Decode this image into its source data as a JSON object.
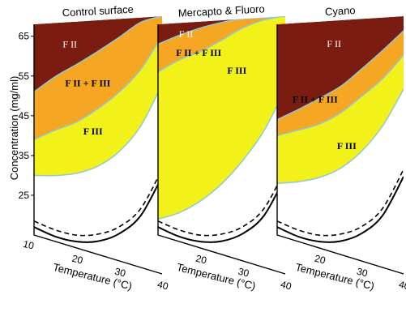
{
  "chart_data": {
    "type": "area",
    "ylabel": "Concentration (mg/ml)",
    "xlabel": "Temperature (°C)",
    "y_ticks": [
      "65",
      "55",
      "45",
      "35",
      "25"
    ],
    "x_ticks": [
      "10",
      "20",
      "30",
      "40"
    ],
    "y_ticks_values": [
      65,
      55,
      45,
      35,
      25
    ],
    "x_ticks_values": [
      10,
      20,
      30,
      40
    ],
    "xlim": [
      10,
      40
    ],
    "ylim": [
      15,
      68
    ],
    "colors": {
      "fII": "#7a1c10",
      "mixed": "#f5a623",
      "fIII": "#f2f21a",
      "boundary": "#8fc8d8",
      "solid_curve": "#000000",
      "dashed_curve": "#000000"
    },
    "panels": [
      {
        "title": "Control surface",
        "regions": [
          {
            "label": "F II",
            "between": "top and fII_boundary"
          },
          {
            "label": "F II + F III",
            "between": "fII_boundary and mixed_boundary"
          },
          {
            "label": "F III",
            "between": "mixed_boundary and fIII_boundary"
          }
        ],
        "fII_boundary": {
          "x": [
            10,
            15,
            20,
            25,
            30,
            35,
            40
          ],
          "y": [
            51,
            55,
            58,
            61,
            64,
            67,
            68
          ]
        },
        "mixed_boundary": {
          "x": [
            10,
            15,
            20,
            25,
            30,
            35,
            40
          ],
          "y": [
            39,
            42,
            44.5,
            48,
            52,
            57,
            64
          ]
        },
        "fIII_boundary": {
          "x": [
            10,
            15,
            20,
            25,
            30,
            35,
            40
          ],
          "y": [
            30,
            31,
            32.5,
            35,
            39,
            45,
            54
          ]
        },
        "solid_curve": {
          "x": [
            10,
            15,
            20,
            25,
            30,
            35,
            40
          ],
          "y": [
            17,
            16.2,
            16.5,
            18,
            21,
            26,
            35
          ]
        },
        "dashed_curve": {
          "x": [
            10,
            15,
            20,
            25,
            30,
            35,
            40
          ],
          "y": [
            18.5,
            17.8,
            18,
            19.6,
            22.5,
            27.5,
            36.5
          ]
        }
      },
      {
        "title": "Mercapto & Fluoro",
        "regions": [
          {
            "label": "F II",
            "between": "top and fII_boundary"
          },
          {
            "label": "F II + F III",
            "between": "fII_boundary and mixed_boundary"
          },
          {
            "label": "F III",
            "between": "mixed_boundary and fIII_boundary"
          }
        ],
        "fII_boundary": {
          "x": [
            10,
            15,
            20,
            25,
            30,
            35,
            40
          ],
          "y": [
            63,
            65,
            66.5,
            67.5,
            68,
            68,
            68
          ]
        },
        "mixed_boundary": {
          "x": [
            10,
            15,
            20,
            25,
            30,
            35,
            40
          ],
          "y": [
            56,
            59,
            61,
            63.5,
            66,
            67.5,
            68
          ]
        },
        "fIII_boundary": {
          "x": [
            10,
            15,
            20,
            25,
            30,
            35,
            40
          ],
          "y": [
            19,
            22,
            26,
            31,
            37,
            44,
            53
          ]
        },
        "solid_curve": {
          "x": [
            10,
            15,
            20,
            25,
            30,
            35,
            40
          ],
          "y": [
            17,
            16.2,
            16.5,
            18,
            21,
            26,
            35
          ]
        },
        "dashed_curve": {
          "x": [
            10,
            15,
            20,
            25,
            30,
            35,
            40
          ],
          "y": [
            18.5,
            17.8,
            18,
            19.6,
            22.5,
            27.5,
            36.5
          ]
        }
      },
      {
        "title": "Cyano",
        "regions": [
          {
            "label": "F II",
            "between": "top and fII_boundary"
          },
          {
            "label": "F II + F III",
            "between": "fII_boundary and mixed_boundary"
          },
          {
            "label": "F III",
            "between": "mixed_boundary and fIII_boundary"
          }
        ],
        "fII_boundary": {
          "x": [
            10,
            15,
            20,
            25,
            30,
            35,
            40
          ],
          "y": [
            44,
            47,
            50,
            53,
            57,
            61,
            65
          ]
        },
        "mixed_boundary": {
          "x": [
            10,
            15,
            20,
            25,
            30,
            35,
            40
          ],
          "y": [
            40,
            42,
            44,
            47,
            51,
            55,
            60
          ]
        },
        "fIII_boundary": {
          "x": [
            10,
            15,
            20,
            25,
            30,
            35,
            40
          ],
          "y": [
            28,
            29.5,
            31.5,
            34.5,
            39,
            45,
            53
          ]
        },
        "solid_curve": {
          "x": [
            10,
            15,
            20,
            25,
            30,
            35,
            40
          ],
          "y": [
            17,
            16.2,
            16.5,
            18,
            21,
            26,
            35
          ]
        },
        "dashed_curve": {
          "x": [
            10,
            15,
            20,
            25,
            30,
            35,
            40
          ],
          "y": [
            18.5,
            17.8,
            18,
            19.6,
            22.5,
            27.5,
            36.5
          ]
        }
      }
    ]
  }
}
